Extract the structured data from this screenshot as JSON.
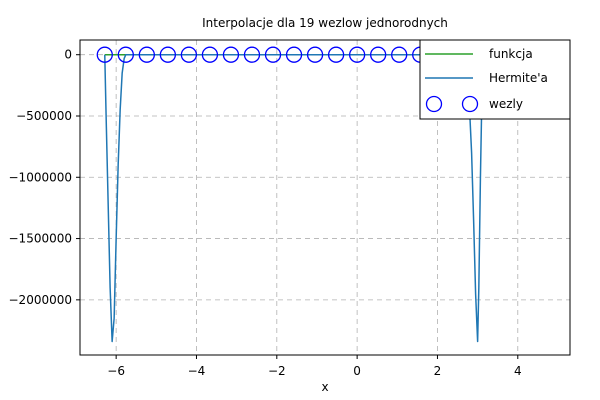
{
  "chart_data": {
    "type": "line",
    "title": "Interpolacje dla 19 wezlow jednorodnych",
    "xlabel": "x",
    "ylabel": "",
    "xlim": [
      -6.9,
      5.3
    ],
    "ylim": [
      -2450000,
      120000
    ],
    "xticks": [
      -6,
      -4,
      -2,
      0,
      2,
      4
    ],
    "xtick_labels": [
      "−6",
      "−4",
      "−2",
      "0",
      "2",
      "4"
    ],
    "yticks": [
      0,
      -500000,
      -1000000,
      -1500000,
      -2000000
    ],
    "ytick_labels": [
      "0",
      "−500000",
      "−1000000",
      "−1500000",
      "−2000000"
    ],
    "grid": true,
    "legend_position": "top-right",
    "colors": {
      "funkcja": "#2ca02c",
      "hermite": "#1f77b4",
      "wezly": "#0000ff"
    },
    "series": [
      {
        "name": "funkcja",
        "x": [
          -6.2832,
          3.1416
        ],
        "y": [
          0,
          0
        ]
      },
      {
        "name": "Hermite'a",
        "x": [
          -6.2832,
          -6.25,
          -6.2,
          -6.15,
          -6.1,
          -6.05,
          -6.0,
          -5.95,
          -5.9,
          -5.85,
          -5.8,
          -5.76,
          -5.5,
          -5.0,
          -4.0,
          -3.0,
          -2.0,
          -1.0,
          0.0,
          1.0,
          2.0,
          2.3,
          2.5,
          2.6,
          2.7,
          2.8,
          2.85,
          2.9,
          2.95,
          3.0,
          3.03,
          3.07,
          3.1,
          3.1416
        ],
        "y": [
          0,
          -500000,
          -1200000,
          -1900000,
          -2340000,
          -2150000,
          -1500000,
          -900000,
          -450000,
          -150000,
          -30000,
          0,
          0,
          0,
          0,
          0,
          0,
          0,
          0,
          0,
          0,
          0,
          -5000,
          -30000,
          -120000,
          -450000,
          -800000,
          -1350000,
          -1950000,
          -2340000,
          -1900000,
          -1000000,
          -450000,
          0
        ]
      },
      {
        "name": "wezly",
        "style": "markers",
        "x": [
          -6.2832,
          -5.7596,
          -5.236,
          -4.7124,
          -4.1888,
          -3.6652,
          -3.1416,
          -2.618,
          -2.0944,
          -1.5708,
          -1.0472,
          -0.5236,
          0.0,
          0.5236,
          1.0472,
          1.5708,
          2.0944,
          2.618,
          3.1416
        ],
        "y": [
          0,
          0,
          0,
          0,
          0,
          0,
          0,
          0,
          0,
          0,
          0,
          0,
          0,
          0,
          0,
          0,
          0,
          0,
          0
        ]
      }
    ]
  }
}
